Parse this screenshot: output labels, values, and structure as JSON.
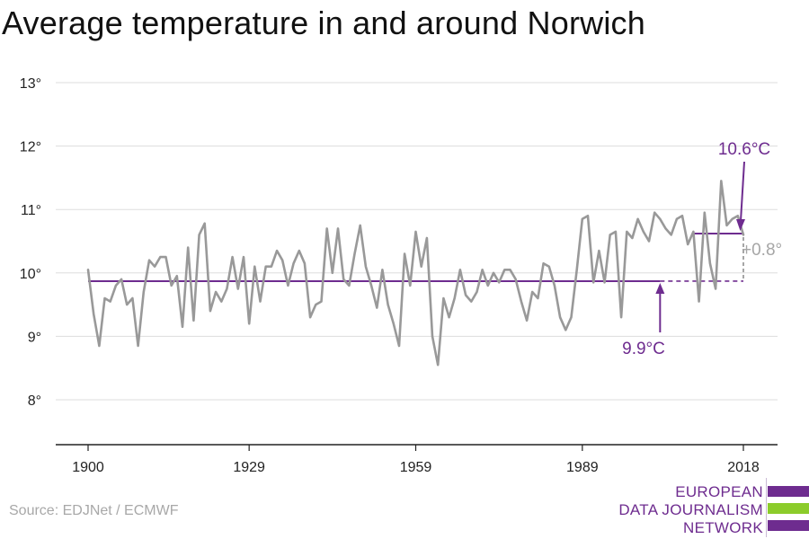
{
  "title": "Average temperature in and around Norwich",
  "source": "Source: EDJNet / ECMWF",
  "logo": {
    "line1": "EUROPEAN",
    "line2": "DATA JOURNALISM",
    "line3": "NETWORK",
    "colors": [
      "#6e2c8f",
      "#8ccc2b",
      "#6e2c8f"
    ]
  },
  "colors": {
    "series": "#999999",
    "accent": "#6e2c8f",
    "diff": "#a6a6a6",
    "grid": "#dddddd",
    "axis": "#222222"
  },
  "chart_data": {
    "type": "line",
    "title": "Average temperature in and around Norwich",
    "xlabel": "",
    "ylabel": "",
    "xlim": [
      1900,
      2018
    ],
    "ylim": [
      8,
      13
    ],
    "x_ticks": [
      1900,
      1929,
      1959,
      1989,
      2018
    ],
    "y_ticks": [
      8,
      9,
      10,
      11,
      12,
      13
    ],
    "y_tick_labels": [
      "8°",
      "9°",
      "10°",
      "11°",
      "12°",
      "13°"
    ],
    "grid": true,
    "series": [
      {
        "x": [
          1900,
          1901,
          1902,
          1903,
          1904,
          1905,
          1906,
          1907,
          1908,
          1909,
          1910,
          1911,
          1912,
          1913,
          1914,
          1915,
          1916,
          1917,
          1918,
          1919,
          1920,
          1921,
          1922,
          1923,
          1924,
          1925,
          1926,
          1927,
          1928,
          1929,
          1930,
          1931,
          1932,
          1933,
          1934,
          1935,
          1936,
          1937,
          1938,
          1939,
          1940,
          1941,
          1942,
          1943,
          1944,
          1945,
          1946,
          1947,
          1948,
          1949,
          1950,
          1951,
          1952,
          1953,
          1954,
          1955,
          1956,
          1957,
          1958,
          1959,
          1960,
          1961,
          1962,
          1963,
          1964,
          1965,
          1966,
          1967,
          1968,
          1969,
          1970,
          1971,
          1972,
          1973,
          1974,
          1975,
          1976,
          1977,
          1978,
          1979,
          1980,
          1981,
          1982,
          1983,
          1984,
          1985,
          1986,
          1987,
          1988,
          1989,
          1990,
          1991,
          1992,
          1993,
          1994,
          1995,
          1996,
          1997,
          1998,
          1999,
          2000,
          2001,
          2002,
          2003,
          2004,
          2005,
          2006,
          2007,
          2008,
          2009,
          2010,
          2011,
          2012,
          2013,
          2014,
          2015,
          2016,
          2017,
          2018
        ],
        "values": [
          10.05,
          9.35,
          8.85,
          9.6,
          9.55,
          9.8,
          9.9,
          9.5,
          9.6,
          8.85,
          9.7,
          10.2,
          10.1,
          10.25,
          10.25,
          9.8,
          9.95,
          9.15,
          10.4,
          9.25,
          10.6,
          10.78,
          9.4,
          9.7,
          9.55,
          9.75,
          10.25,
          9.75,
          10.25,
          9.2,
          10.1,
          9.55,
          10.1,
          10.1,
          10.35,
          10.2,
          9.8,
          10.15,
          10.35,
          10.15,
          9.3,
          9.5,
          9.55,
          10.7,
          10.0,
          10.7,
          9.9,
          9.8,
          10.3,
          10.75,
          10.1,
          9.8,
          9.45,
          10.05,
          9.5,
          9.2,
          8.85,
          10.3,
          9.8,
          10.65,
          10.1,
          10.55,
          9.0,
          8.55,
          9.6,
          9.3,
          9.6,
          10.05,
          9.65,
          9.55,
          9.7,
          10.05,
          9.8,
          10.0,
          9.85,
          10.05,
          10.05,
          9.9,
          9.55,
          9.25,
          9.7,
          9.6,
          10.15,
          10.1,
          9.8,
          9.3,
          9.1,
          9.3,
          10.05,
          10.85,
          10.9,
          9.85,
          10.35,
          9.85,
          10.6,
          10.65,
          9.3,
          10.65,
          10.55,
          10.85,
          10.65,
          10.5,
          10.95,
          10.85,
          10.7,
          10.6,
          10.85,
          10.9,
          10.45,
          10.65,
          9.55,
          10.95,
          10.15,
          9.75,
          11.45,
          10.75,
          10.85,
          10.9,
          10.6
        ]
      }
    ],
    "reference_lines": [
      {
        "label": "9.9°C",
        "value": 9.87,
        "from": 1900,
        "to": 2018,
        "solid_to": 2003
      },
      {
        "label": "10.6°C",
        "value": 10.62,
        "from": 2009,
        "to": 2018
      }
    ],
    "annotations": [
      {
        "text": "9.9°C"
      },
      {
        "text": "10.6°C"
      },
      {
        "text": "+0.8°"
      }
    ]
  }
}
